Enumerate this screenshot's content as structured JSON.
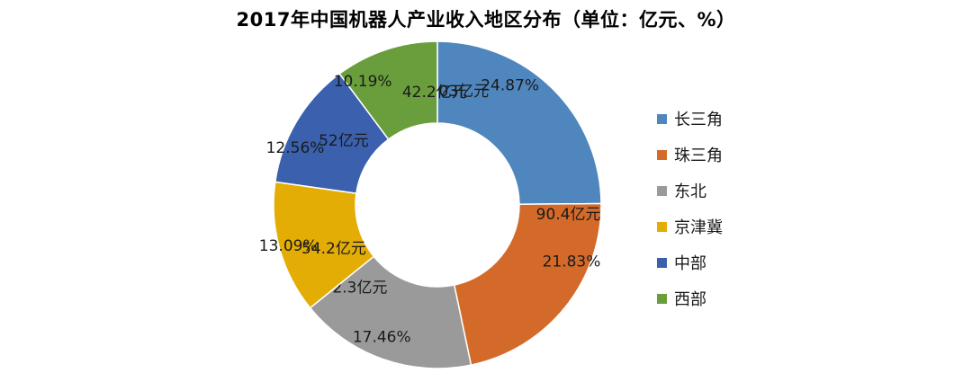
{
  "chart_data": {
    "type": "pie",
    "title": "2017年中国机器人产业收入地区分布（单位：亿元、%）",
    "categories": [
      "长三角",
      "珠三角",
      "东北",
      "京津冀",
      "中部",
      "西部"
    ],
    "values": [
      103,
      90.4,
      72.3,
      54.2,
      52,
      42.2
    ],
    "value_labels": [
      "103亿元",
      "90.4亿元",
      "72.3亿元",
      "54.2亿元",
      "52亿元",
      "42.2亿元"
    ],
    "percents": [
      24.87,
      21.83,
      17.46,
      13.09,
      12.56,
      10.19
    ],
    "percent_labels": [
      "24.87%",
      "21.83%",
      "17.46%",
      "13.09%",
      "12.56%",
      "10.19%"
    ],
    "colors": [
      "#4F86BD",
      "#D46A29",
      "#9A9A9A",
      "#E3AD05",
      "#3A60AE",
      "#6A9E3C"
    ],
    "donut": true,
    "legend_position": "right"
  }
}
